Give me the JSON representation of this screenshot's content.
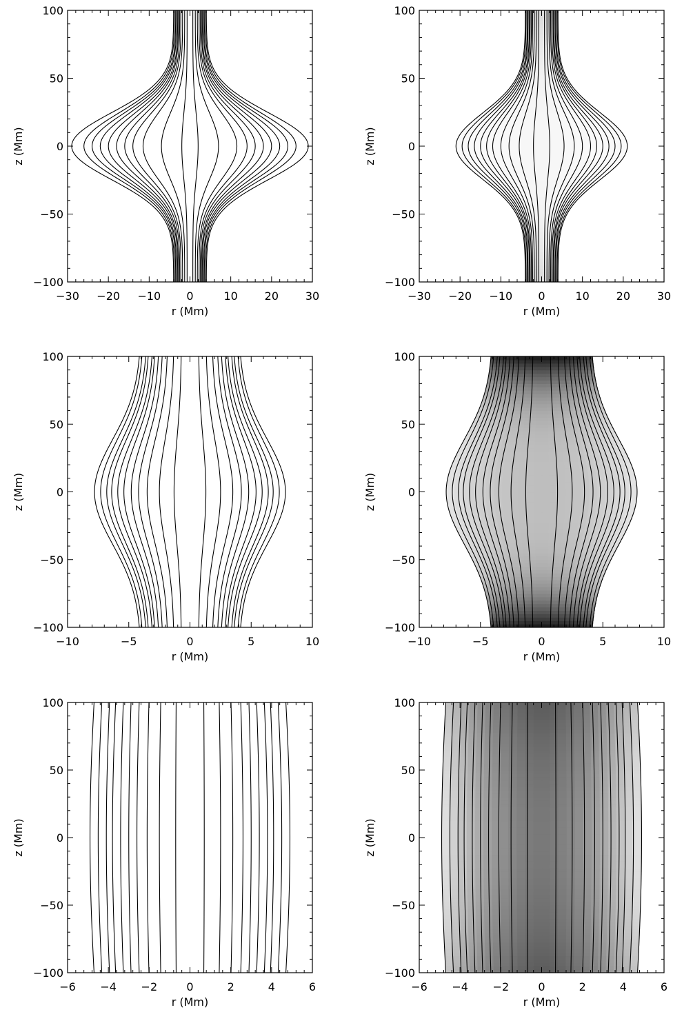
{
  "chart_data": [
    {
      "id": "top-left",
      "type": "line",
      "shaded": false,
      "xlabel": "r (Mm)",
      "ylabel": "z (Mm)",
      "xlim": [
        -30,
        30
      ],
      "ylim": [
        -100,
        100
      ],
      "xticks": [
        -30,
        -20,
        -10,
        0,
        10,
        20,
        30
      ],
      "yticks": [
        -100,
        -50,
        0,
        50,
        100
      ],
      "field_lines": {
        "footpoint_radius_at_ends": [
          0.7,
          1.3,
          1.8,
          2.2,
          2.5,
          2.8,
          3.0,
          3.3,
          3.5,
          3.8,
          4.0
        ],
        "radius_at_z0": [
          2.0,
          7.0,
          11.5,
          14.0,
          16.0,
          18.0,
          20.0,
          22.0,
          24.0,
          26.0,
          29.0
        ],
        "profile_width_mm": 35
      }
    },
    {
      "id": "top-right",
      "type": "line",
      "shaded": true,
      "shading": "light, slightly darker toward the ends",
      "xlabel": "r (Mm)",
      "ylabel": "z (Mm)",
      "xlim": [
        -30,
        30
      ],
      "ylim": [
        -100,
        100
      ],
      "xticks": [
        -30,
        -20,
        -10,
        0,
        10,
        20,
        30
      ],
      "yticks": [
        -100,
        -50,
        0,
        50,
        100
      ],
      "field_lines": {
        "footpoint_radius_at_ends": [
          0.7,
          1.3,
          1.8,
          2.2,
          2.5,
          2.8,
          3.0,
          3.3,
          3.5,
          3.8,
          4.0
        ],
        "radius_at_z0": [
          2.0,
          5.5,
          8.0,
          10.0,
          12.0,
          13.5,
          15.0,
          16.5,
          18.0,
          19.5,
          21.0
        ],
        "profile_width_mm": 35
      }
    },
    {
      "id": "middle-left",
      "type": "line",
      "shaded": false,
      "xlabel": "r (Mm)",
      "ylabel": "z (Mm)",
      "xlim": [
        -10,
        10
      ],
      "ylim": [
        -100,
        100
      ],
      "xticks": [
        -10,
        -5,
        0,
        5,
        10
      ],
      "yticks": [
        -100,
        -50,
        0,
        50,
        100
      ],
      "field_lines": {
        "footpoint_radius_at_ends": [
          0.7,
          1.3,
          1.8,
          2.2,
          2.5,
          2.8,
          3.0,
          3.3,
          3.5,
          3.8,
          4.0
        ],
        "radius_at_z0": [
          1.3,
          2.5,
          3.5,
          4.2,
          4.8,
          5.4,
          5.9,
          6.4,
          6.8,
          7.3,
          7.8
        ],
        "profile_width_mm": 55
      }
    },
    {
      "id": "middle-right",
      "type": "line",
      "shaded": true,
      "shading": "grey, dark core near z = +/-100",
      "xlabel": "r (Mm)",
      "ylabel": "z (Mm)",
      "xlim": [
        -10,
        10
      ],
      "ylim": [
        -100,
        100
      ],
      "xticks": [
        -10,
        -5,
        0,
        5,
        10
      ],
      "yticks": [
        -100,
        -50,
        0,
        50,
        100
      ],
      "field_lines": {
        "footpoint_radius_at_ends": [
          0.7,
          1.3,
          1.8,
          2.2,
          2.5,
          2.8,
          3.0,
          3.3,
          3.5,
          3.8,
          4.0
        ],
        "radius_at_z0": [
          1.3,
          2.5,
          3.5,
          4.2,
          4.8,
          5.4,
          5.9,
          6.4,
          6.8,
          7.3,
          7.8
        ],
        "profile_width_mm": 55
      }
    },
    {
      "id": "bottom-left",
      "type": "line",
      "shaded": false,
      "xlabel": "r (Mm)",
      "ylabel": "z (Mm)",
      "xlim": [
        -6,
        6
      ],
      "ylim": [
        -100,
        100
      ],
      "xticks": [
        -6,
        -4,
        -2,
        0,
        2,
        4,
        6
      ],
      "yticks": [
        -100,
        -50,
        0,
        50,
        100
      ],
      "field_lines": {
        "footpoint_radius_at_ends": [
          0.6,
          1.2,
          1.7,
          2.1,
          2.5,
          2.8,
          3.1,
          3.4,
          3.7,
          4.0
        ],
        "radius_at_z0": [
          0.7,
          1.5,
          2.1,
          2.6,
          3.0,
          3.4,
          3.8,
          4.1,
          4.5,
          4.9
        ],
        "profile_width_mm": 200
      }
    },
    {
      "id": "bottom-right",
      "type": "line",
      "shaded": true,
      "shading": "dark core, lighter toward the edges",
      "xlabel": "r (Mm)",
      "ylabel": "z (Mm)",
      "xlim": [
        -6,
        6
      ],
      "ylim": [
        -100,
        100
      ],
      "xticks": [
        -6,
        -4,
        -2,
        0,
        2,
        4,
        6
      ],
      "yticks": [
        -100,
        -50,
        0,
        50,
        100
      ],
      "field_lines": {
        "footpoint_radius_at_ends": [
          0.6,
          1.2,
          1.7,
          2.1,
          2.5,
          2.8,
          3.1,
          3.4,
          3.7,
          4.0
        ],
        "radius_at_z0": [
          0.7,
          1.5,
          2.1,
          2.6,
          3.0,
          3.4,
          3.8,
          4.1,
          4.5,
          4.9
        ],
        "profile_width_mm": 200
      }
    }
  ]
}
